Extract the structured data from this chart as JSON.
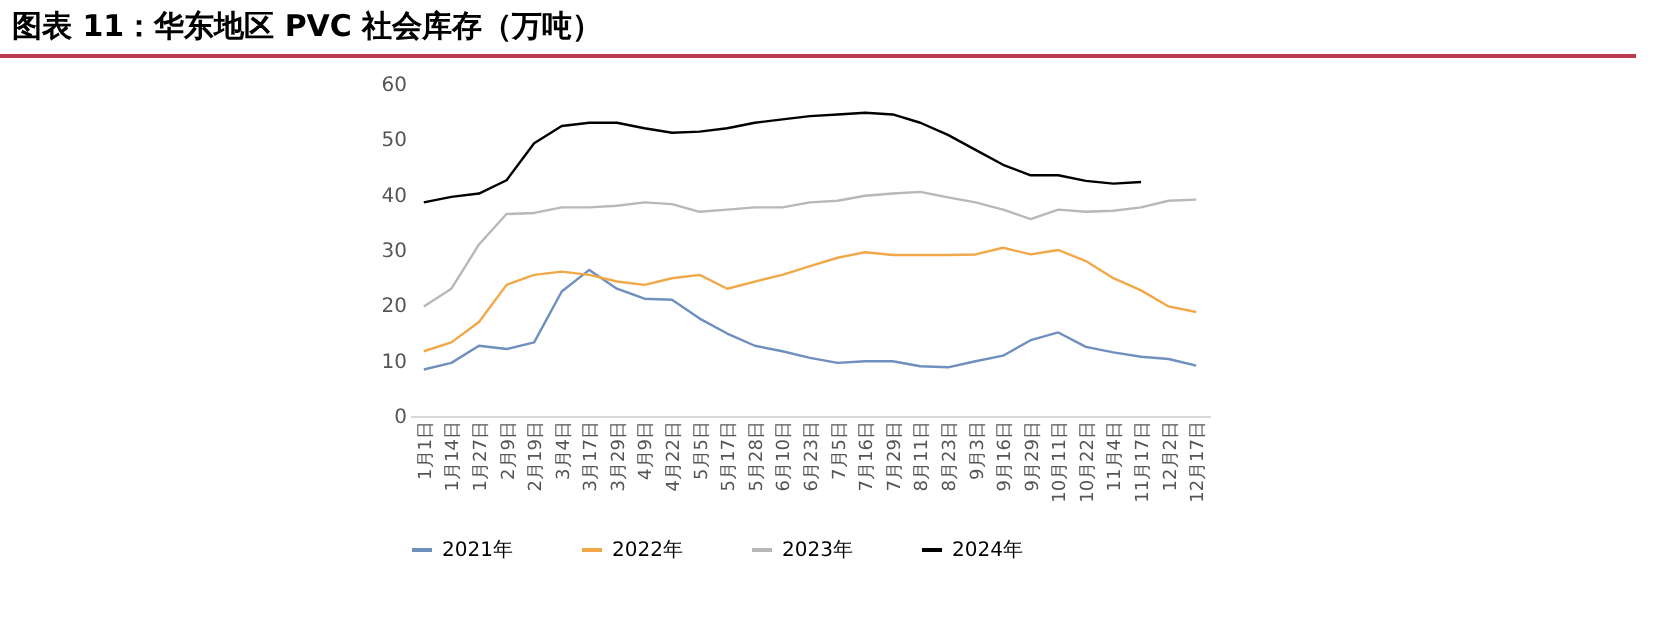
{
  "chart_data": {
    "type": "line",
    "title": "图表 11：华东地区 PVC 社会库存（万吨）",
    "categories": [
      "1月1日",
      "1月14日",
      "1月27日",
      "2月9日",
      "2月19日",
      "3月4日",
      "3月17日",
      "3月29日",
      "4月9日",
      "4月22日",
      "5月5日",
      "5月17日",
      "5月28日",
      "6月10日",
      "6月23日",
      "7月5日",
      "7月16日",
      "7月29日",
      "8月11日",
      "8月23日",
      "9月3日",
      "9月16日",
      "9月29日",
      "10月11日",
      "10月22日",
      "11月4日",
      "11月17日",
      "12月2日",
      "12月17日"
    ],
    "series": [
      {
        "name": "2021年",
        "color": "#6f8fbf",
        "values": [
          8.4,
          9.6,
          12.7,
          12.1,
          13.3,
          22.5,
          26.4,
          23,
          21.2,
          21,
          17.6,
          14.9,
          12.7,
          11.7,
          10.5,
          9.6,
          9.9,
          9.9,
          9,
          8.8,
          9.9,
          10.9,
          13.7,
          15.1,
          12.5,
          11.5,
          10.7,
          10.3,
          9.1
        ]
      },
      {
        "name": "2022年",
        "color": "#f0a848",
        "values": [
          11.7,
          13.3,
          17,
          23.7,
          25.5,
          26.1,
          25.5,
          24.3,
          23.7,
          24.9,
          25.5,
          23,
          24.3,
          25.5,
          27.1,
          28.6,
          29.6,
          29.1,
          29.1,
          29.1,
          29.2,
          30.4,
          29.2,
          30,
          28,
          24.9,
          22.7,
          19.8,
          18.8
        ]
      },
      {
        "name": "2023年",
        "color": "#b8b8b8",
        "values": [
          19.8,
          23,
          31,
          36.5,
          36.7,
          37.7,
          37.7,
          38,
          38.6,
          38.3,
          36.9,
          37.3,
          37.7,
          37.7,
          38.6,
          38.9,
          39.8,
          40.2,
          40.5,
          39.5,
          38.6,
          37.3,
          35.6,
          37.3,
          36.9,
          37.1,
          37.7,
          38.9,
          39.1
        ]
      },
      {
        "name": "2024年",
        "color": "#000000",
        "values": [
          38.6,
          39.6,
          40.2,
          42.6,
          49.3,
          52.4,
          53,
          53,
          52,
          51.2,
          51.4,
          52,
          53,
          53.6,
          54.2,
          54.5,
          54.8,
          54.5,
          53,
          50.8,
          48.1,
          45.4,
          43.5,
          43.5,
          42.5,
          42,
          42.3,
          null,
          null
        ]
      }
    ],
    "ylim": [
      0,
      60
    ],
    "yticks": [
      0,
      10,
      20,
      30,
      40,
      50,
      60
    ],
    "grid": false,
    "legend": "bottom",
    "marker": "none",
    "line_style": "solid"
  }
}
